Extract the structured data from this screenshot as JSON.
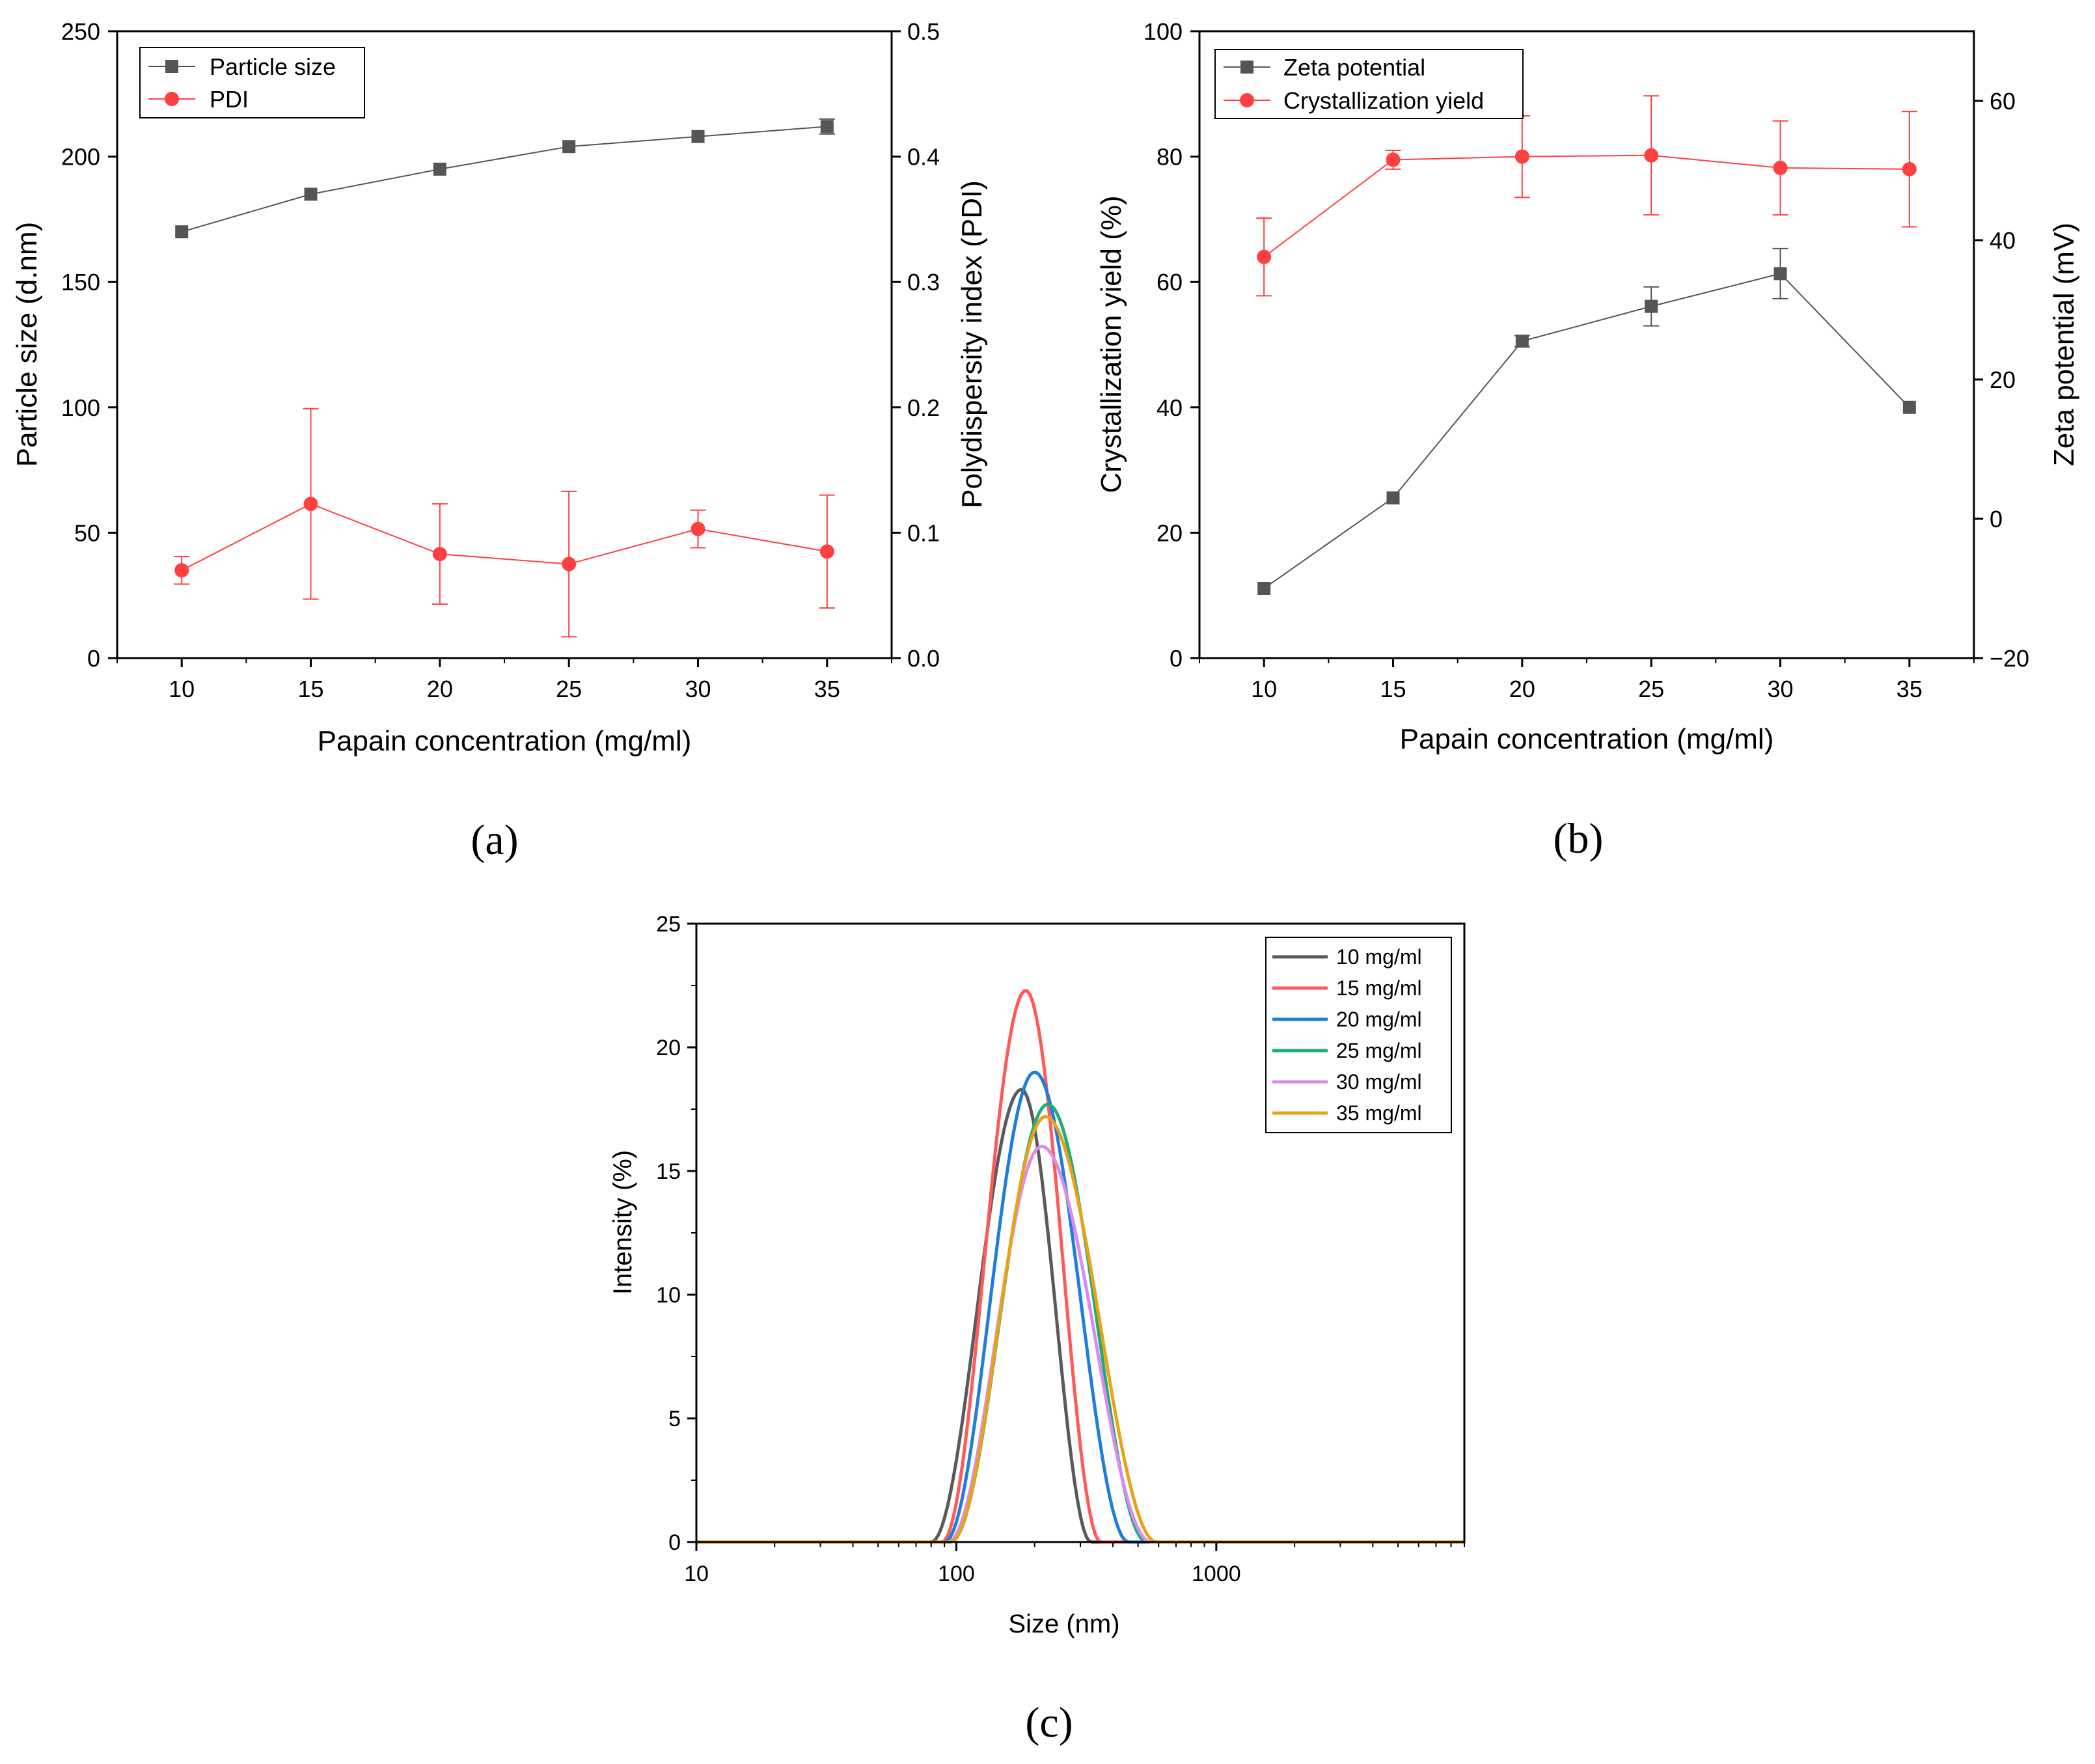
{
  "chart_data": [
    {
      "panel": "(a)",
      "type": "line",
      "title": "",
      "xlabel": "Papain concentration (mg/ml)",
      "ylabel": "Particle size (d.nm)",
      "ylabel_right": "Polydispersity index (PDI)",
      "xlim": [
        7.5,
        37.5
      ],
      "ylim": [
        0,
        250
      ],
      "ylim_right": [
        0,
        0.5
      ],
      "x_ticks": [
        "10",
        "15",
        "20",
        "25",
        "30",
        "35"
      ],
      "y_ticks": [
        "0",
        "50",
        "100",
        "150",
        "200",
        "250"
      ],
      "y_ticks_right": [
        "0.0",
        "0.1",
        "0.2",
        "0.3",
        "0.4",
        "0.5"
      ],
      "legend_position": "top-left",
      "x": [
        10,
        15,
        20,
        25,
        30,
        35
      ],
      "series": [
        {
          "name": "Particle size",
          "axis": "left",
          "color": "#555555",
          "marker": "square",
          "values": [
            170,
            185,
            195,
            204,
            208,
            212
          ],
          "errors": [
            0,
            0,
            0,
            0,
            0,
            3
          ]
        },
        {
          "name": "PDI",
          "axis": "right",
          "color": "#ff4040",
          "marker": "circle",
          "values": [
            0.07,
            0.123,
            0.083,
            0.075,
            0.103,
            0.085
          ],
          "errors": [
            0.011,
            0.076,
            0.04,
            0.058,
            0.015,
            0.045
          ]
        }
      ]
    },
    {
      "panel": "(b)",
      "type": "line",
      "title": "",
      "xlabel": "Papain concentration (mg/ml)",
      "ylabel": "Crystallization yield (%)",
      "ylabel_right": "Zeta potential (mV)",
      "xlim": [
        7.5,
        37.5
      ],
      "ylim": [
        0,
        100
      ],
      "ylim_right": [
        -20,
        70
      ],
      "x_ticks": [
        "10",
        "15",
        "20",
        "25",
        "30",
        "35"
      ],
      "y_ticks": [
        "0",
        "20",
        "40",
        "60",
        "80",
        "100"
      ],
      "y_ticks_right": [
        "−20",
        "0",
        "20",
        "40",
        "60"
      ],
      "y_ticks_right_values": [
        -20,
        0,
        20,
        40,
        60
      ],
      "legend_position": "top-left",
      "x": [
        10,
        15,
        20,
        25,
        30,
        35
      ],
      "series": [
        {
          "name": "Zeta potential",
          "axis": "right",
          "color": "#555555",
          "marker": "square",
          "values": [
            -10,
            3,
            25.5,
            30.5,
            35.2,
            16
          ],
          "errors": [
            0,
            0,
            0.8,
            2.8,
            3.6,
            0
          ]
        },
        {
          "name": "Crystallization yield",
          "axis": "left",
          "color": "#ff4040",
          "marker": "circle",
          "values": [
            64,
            79.5,
            80,
            80.2,
            78.2,
            78
          ],
          "errors": [
            6.2,
            1.5,
            6.5,
            9.5,
            7.5,
            9.2
          ]
        }
      ]
    },
    {
      "panel": "(c)",
      "type": "line",
      "title": "",
      "xlabel": "Size (nm)",
      "ylabel": "Intensity (%)",
      "xscale": "log",
      "xlim": [
        10,
        9000
      ],
      "ylim": [
        0,
        25
      ],
      "x_ticks": [
        "10",
        "100",
        "1000"
      ],
      "x_ticks_values": [
        10,
        100,
        1000
      ],
      "y_ticks": [
        "0",
        "5",
        "10",
        "15",
        "20",
        "25"
      ],
      "legend_position": "top-right",
      "series": [
        {
          "name": "10 mg/ml",
          "color": "#5a5a5a",
          "peak_size": 178,
          "peak_intensity": 18.3,
          "start_size": 80,
          "end_size": 330
        },
        {
          "name": "15 mg/ml",
          "color": "#ff5a5a",
          "peak_size": 185,
          "peak_intensity": 22.3,
          "start_size": 88,
          "end_size": 360
        },
        {
          "name": "20 mg/ml",
          "color": "#1f7fd8",
          "peak_size": 200,
          "peak_intensity": 19.0,
          "start_size": 90,
          "end_size": 460
        },
        {
          "name": "25 mg/ml",
          "color": "#1fae7a",
          "peak_size": 225,
          "peak_intensity": 17.7,
          "start_size": 95,
          "end_size": 540
        },
        {
          "name": "30 mg/ml",
          "color": "#d98cf0",
          "peak_size": 213,
          "peak_intensity": 16.0,
          "start_size": 93,
          "end_size": 560
        },
        {
          "name": "35 mg/ml",
          "color": "#e8a317",
          "peak_size": 220,
          "peak_intensity": 17.2,
          "start_size": 95,
          "end_size": 590
        }
      ]
    }
  ]
}
